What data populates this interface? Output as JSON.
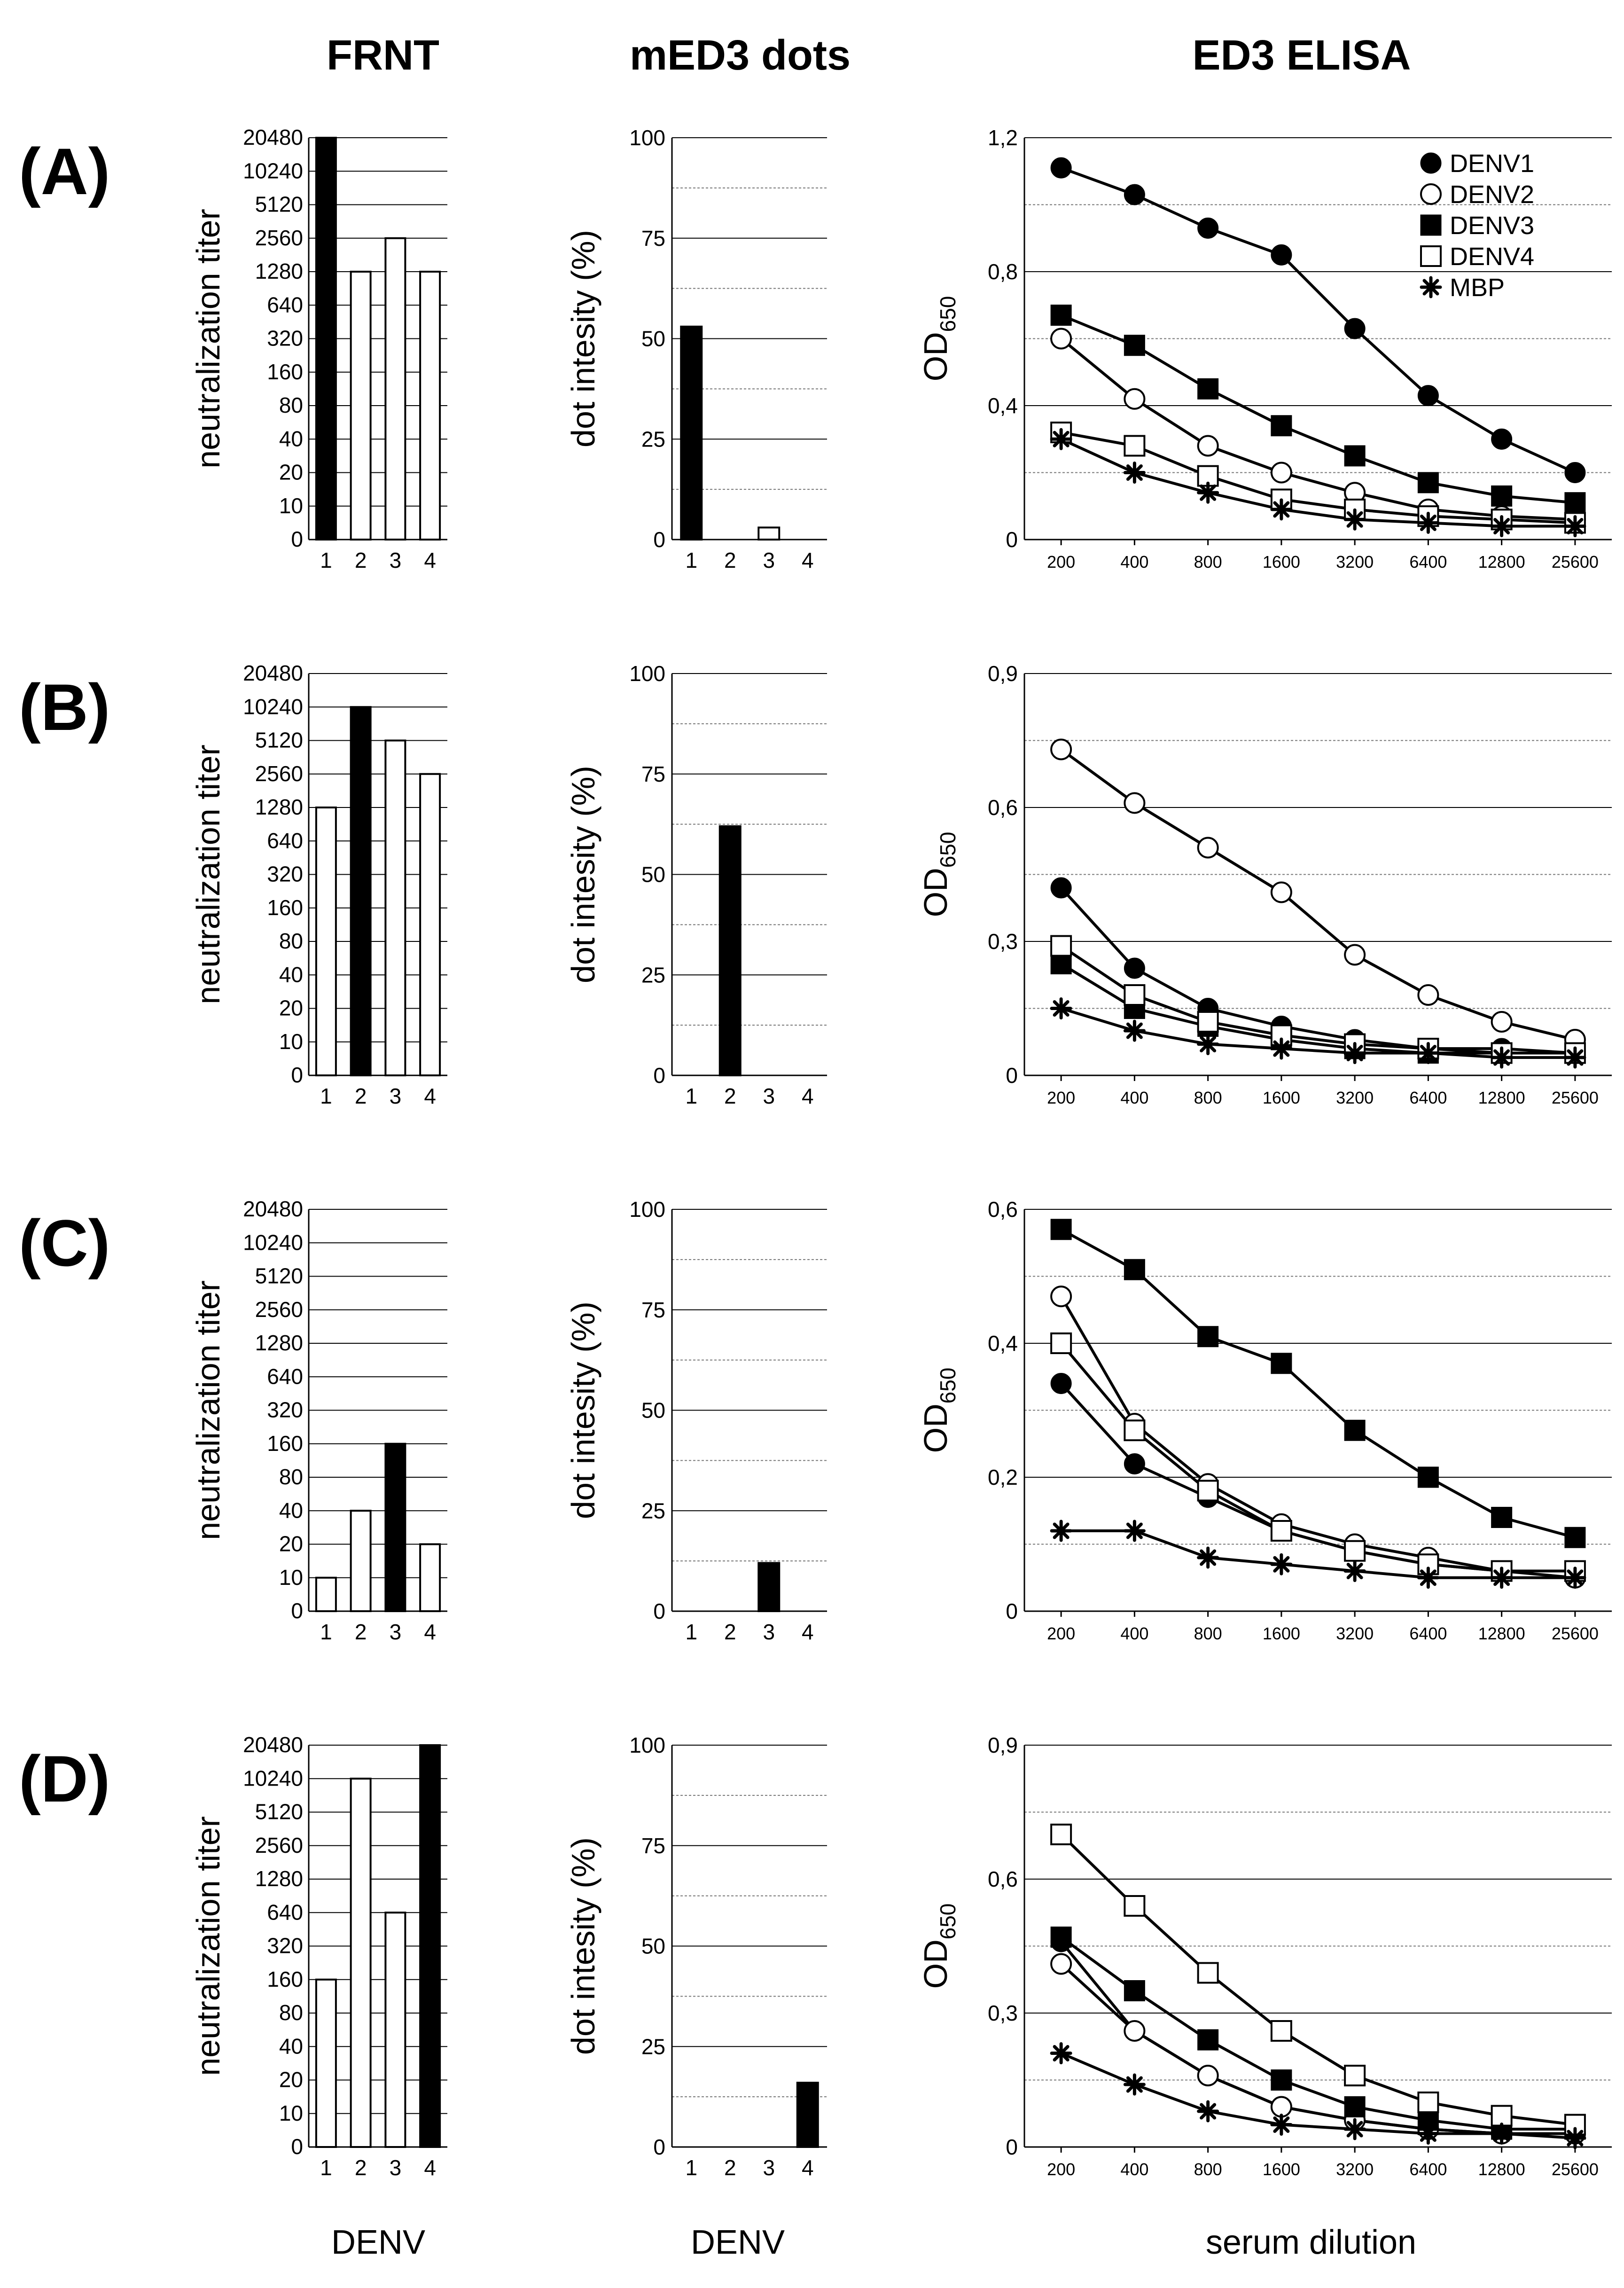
{
  "titles": {
    "frnt": "FRNT",
    "dots": "mED3 dots",
    "elisa": "ED3 ELISA"
  },
  "bottom_labels": {
    "frnt": "DENV",
    "dots": "DENV",
    "elisa": "serum dilution"
  },
  "chart_data": [
    {
      "type": "bar",
      "panel": "(A)",
      "chart": "FRNT",
      "ylabel": "neutralization titer",
      "categories": [
        "1",
        "2",
        "3",
        "4"
      ],
      "yticks": [
        "0",
        "10",
        "20",
        "40",
        "80",
        "160",
        "320",
        "640",
        "1280",
        "2560",
        "5120",
        "10240",
        "20480"
      ],
      "values": [
        20480,
        1280,
        2560,
        1280
      ],
      "highlight": 1
    },
    {
      "type": "bar",
      "panel": "(A)",
      "chart": "mED3 dots",
      "ylabel": "dot intesity (%)",
      "categories": [
        "1",
        "2",
        "3",
        "4"
      ],
      "yticks": [
        "0",
        "25",
        "50",
        "75",
        "100"
      ],
      "ylim": [
        0,
        100
      ],
      "values": [
        53,
        0,
        3,
        0
      ],
      "highlight": 1
    },
    {
      "type": "line",
      "panel": "(A)",
      "chart": "ED3 ELISA",
      "ylabel": "OD650",
      "ylim": [
        0,
        1.2
      ],
      "yticks": [
        "0",
        "0,4",
        "0,8",
        "1,2"
      ],
      "xlabel": "serum dilution",
      "categories": [
        "200",
        "400",
        "800",
        "1600",
        "3200",
        "6400",
        "12800",
        "25600"
      ],
      "series": [
        {
          "name": "DENV1",
          "marker": "filled-circle",
          "values": [
            1.11,
            1.03,
            0.93,
            0.85,
            0.63,
            0.43,
            0.3,
            0.2
          ]
        },
        {
          "name": "DENV2",
          "marker": "open-circle",
          "values": [
            0.6,
            0.42,
            0.28,
            0.2,
            0.14,
            0.09,
            0.07,
            0.06
          ]
        },
        {
          "name": "DENV3",
          "marker": "filled-square",
          "values": [
            0.67,
            0.58,
            0.45,
            0.34,
            0.25,
            0.17,
            0.13,
            0.11
          ]
        },
        {
          "name": "DENV4",
          "marker": "open-square",
          "values": [
            0.32,
            0.28,
            0.19,
            0.12,
            0.09,
            0.07,
            0.06,
            0.05
          ]
        },
        {
          "name": "MBP",
          "marker": "star",
          "values": [
            0.3,
            0.2,
            0.14,
            0.09,
            0.06,
            0.05,
            0.04,
            0.04
          ]
        }
      ]
    },
    {
      "type": "bar",
      "panel": "(B)",
      "chart": "FRNT",
      "ylabel": "neutralization titer",
      "categories": [
        "1",
        "2",
        "3",
        "4"
      ],
      "yticks": [
        "0",
        "10",
        "20",
        "40",
        "80",
        "160",
        "320",
        "640",
        "1280",
        "2560",
        "5120",
        "10240",
        "20480"
      ],
      "values": [
        1280,
        10240,
        5120,
        2560
      ],
      "highlight": 2
    },
    {
      "type": "bar",
      "panel": "(B)",
      "chart": "mED3 dots",
      "ylabel": "dot intesity (%)",
      "categories": [
        "1",
        "2",
        "3",
        "4"
      ],
      "yticks": [
        "0",
        "25",
        "50",
        "75",
        "100"
      ],
      "ylim": [
        0,
        100
      ],
      "values": [
        0,
        62,
        0,
        0
      ],
      "highlight": 2
    },
    {
      "type": "line",
      "panel": "(B)",
      "chart": "ED3 ELISA",
      "ylabel": "OD650",
      "ylim": [
        0,
        0.9
      ],
      "yticks": [
        "0",
        "0,3",
        "0,6",
        "0,9"
      ],
      "xlabel": "serum dilution",
      "categories": [
        "200",
        "400",
        "800",
        "1600",
        "3200",
        "6400",
        "12800",
        "25600"
      ],
      "series": [
        {
          "name": "DENV1",
          "marker": "filled-circle",
          "values": [
            0.42,
            0.24,
            0.15,
            0.11,
            0.08,
            0.06,
            0.06,
            0.05
          ]
        },
        {
          "name": "DENV2",
          "marker": "open-circle",
          "values": [
            0.73,
            0.61,
            0.51,
            0.41,
            0.27,
            0.18,
            0.12,
            0.08
          ]
        },
        {
          "name": "DENV3",
          "marker": "filled-square",
          "values": [
            0.25,
            0.15,
            0.11,
            0.08,
            0.06,
            0.05,
            0.05,
            0.05
          ]
        },
        {
          "name": "DENV4",
          "marker": "open-square",
          "values": [
            0.29,
            0.18,
            0.12,
            0.09,
            0.07,
            0.06,
            0.05,
            0.05
          ]
        },
        {
          "name": "MBP",
          "marker": "star",
          "values": [
            0.15,
            0.1,
            0.07,
            0.06,
            0.05,
            0.05,
            0.04,
            0.04
          ]
        }
      ]
    },
    {
      "type": "bar",
      "panel": "(C)",
      "chart": "FRNT",
      "ylabel": "neutralization titer",
      "categories": [
        "1",
        "2",
        "3",
        "4"
      ],
      "yticks": [
        "0",
        "10",
        "20",
        "40",
        "80",
        "160",
        "320",
        "640",
        "1280",
        "2560",
        "5120",
        "10240",
        "20480"
      ],
      "values": [
        10,
        40,
        160,
        20
      ],
      "highlight": 3
    },
    {
      "type": "bar",
      "panel": "(C)",
      "chart": "mED3 dots",
      "ylabel": "dot intesity (%)",
      "categories": [
        "1",
        "2",
        "3",
        "4"
      ],
      "yticks": [
        "0",
        "25",
        "50",
        "75",
        "100"
      ],
      "ylim": [
        0,
        100
      ],
      "values": [
        0,
        0,
        12,
        0
      ],
      "highlight": 3
    },
    {
      "type": "line",
      "panel": "(C)",
      "chart": "ED3 ELISA",
      "ylabel": "OD650",
      "ylim": [
        0,
        0.6
      ],
      "yticks": [
        "0",
        "0,2",
        "0,4",
        "0,6"
      ],
      "xlabel": "serum dilution",
      "categories": [
        "200",
        "400",
        "800",
        "1600",
        "3200",
        "6400",
        "12800",
        "25600"
      ],
      "series": [
        {
          "name": "DENV1",
          "marker": "filled-circle",
          "values": [
            0.34,
            0.22,
            0.17,
            0.12,
            0.09,
            0.07,
            0.06,
            0.06
          ]
        },
        {
          "name": "DENV2",
          "marker": "open-circle",
          "values": [
            0.47,
            0.28,
            0.19,
            0.13,
            0.1,
            0.08,
            0.06,
            0.05
          ]
        },
        {
          "name": "DENV3",
          "marker": "filled-square",
          "values": [
            0.57,
            0.51,
            0.41,
            0.37,
            0.27,
            0.2,
            0.14,
            0.11
          ]
        },
        {
          "name": "DENV4",
          "marker": "open-square",
          "values": [
            0.4,
            0.27,
            0.18,
            0.12,
            0.09,
            0.07,
            0.06,
            0.06
          ]
        },
        {
          "name": "MBP",
          "marker": "star",
          "values": [
            0.12,
            0.12,
            0.08,
            0.07,
            0.06,
            0.05,
            0.05,
            0.05
          ]
        }
      ]
    },
    {
      "type": "bar",
      "panel": "(D)",
      "chart": "FRNT",
      "ylabel": "neutralization titer",
      "categories": [
        "1",
        "2",
        "3",
        "4"
      ],
      "yticks": [
        "0",
        "10",
        "20",
        "40",
        "80",
        "160",
        "320",
        "640",
        "1280",
        "2560",
        "5120",
        "10240",
        "20480"
      ],
      "values": [
        160,
        10240,
        640,
        20480
      ],
      "highlight": 4
    },
    {
      "type": "bar",
      "panel": "(D)",
      "chart": "mED3 dots",
      "ylabel": "dot intesity (%)",
      "categories": [
        "1",
        "2",
        "3",
        "4"
      ],
      "yticks": [
        "0",
        "25",
        "50",
        "75",
        "100"
      ],
      "ylim": [
        0,
        100
      ],
      "values": [
        0,
        0,
        0,
        16
      ],
      "highlight": 4
    },
    {
      "type": "line",
      "panel": "(D)",
      "chart": "ED3 ELISA",
      "ylabel": "OD650",
      "ylim": [
        0,
        0.9
      ],
      "yticks": [
        "0",
        "0,3",
        "0,6",
        "0,9"
      ],
      "xlabel": "serum dilution",
      "categories": [
        "200",
        "400",
        "800",
        "1600",
        "3200",
        "6400",
        "12800",
        "25600"
      ],
      "series": [
        {
          "name": "DENV1",
          "marker": "filled-circle",
          "values": [
            0.46,
            0.26,
            0.16,
            0.09,
            0.06,
            0.04,
            0.03,
            0.03
          ]
        },
        {
          "name": "DENV2",
          "marker": "open-circle",
          "values": [
            0.41,
            0.26,
            0.16,
            0.09,
            0.06,
            0.04,
            0.03,
            0.03
          ]
        },
        {
          "name": "DENV3",
          "marker": "filled-square",
          "values": [
            0.47,
            0.35,
            0.24,
            0.15,
            0.09,
            0.06,
            0.04,
            0.04
          ]
        },
        {
          "name": "DENV4",
          "marker": "open-square",
          "values": [
            0.7,
            0.54,
            0.39,
            0.26,
            0.16,
            0.1,
            0.07,
            0.05
          ]
        },
        {
          "name": "MBP",
          "marker": "star",
          "values": [
            0.21,
            0.14,
            0.08,
            0.05,
            0.04,
            0.03,
            0.03,
            0.02
          ]
        }
      ]
    }
  ]
}
